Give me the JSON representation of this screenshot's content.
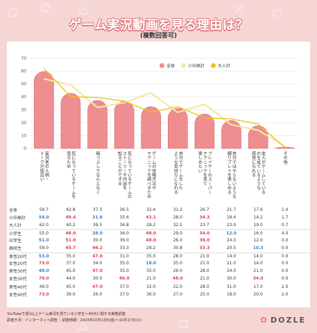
{
  "header": {
    "title": "ゲーム実況動画を見る理由は？",
    "subtitle": "(複数回答可)"
  },
  "colors": {
    "bar": "#ee8e90",
    "bar_edge": "#d9686b",
    "line_minor": "#f5e7a3",
    "line_adult": "#f0c419",
    "high": "#e03c4a",
    "low": "#3d7ec4"
  },
  "chart_data": {
    "type": "bar",
    "ylim": [
      0,
      70
    ],
    "yticks": [
      0,
      10,
      20,
      30,
      40,
      50,
      60,
      70
    ],
    "categories": [
      "実況者の人柄・\nトークが面白い",
      "気になっているゲームを\n見るため",
      "暇つぶしでなんとなく",
      "気になっているゲームの\nストーリーや内容を\n知ることができる",
      "ゲームの攻略方法や\nテクニックを調べるため",
      "自分でゲームをした\nような気持ちになれる",
      "プレイヤーのスーパー\nテクニックを見て\n楽しみたい",
      "自分ではやらないような\n縛りプレイを楽しめる",
      "友人がゲームしている\nのを見ているような\n感覚になれる",
      "その他"
    ],
    "legend": [
      "全体",
      "小中高計",
      "大人計"
    ],
    "series": [
      {
        "name": "全体",
        "type": "bar",
        "values": [
          59.7,
          42.8,
          37.3,
          36.5,
          32.4,
          31.2,
          26.7,
          21.7,
          17.6,
          1.0
        ]
      },
      {
        "name": "小中高計",
        "type": "line",
        "values": [
          54.0,
          49.4,
          31.8,
          35.6,
          43.1,
          28.0,
          34.3,
          18.4,
          14.2,
          1.7
        ]
      },
      {
        "name": "大人計",
        "type": "line",
        "values": [
          62.0,
          40.2,
          39.5,
          36.8,
          28.2,
          32.5,
          23.7,
          23.0,
          19.0,
          0.7
        ]
      }
    ]
  },
  "table": {
    "rows": [
      {
        "label": "全体",
        "values": [
          "59.7",
          "42.8",
          "37.3",
          "36.5",
          "32.4",
          "31.2",
          "26.7",
          "21.7",
          "17.6",
          "1.0"
        ],
        "flags": [
          "",
          "",
          "",
          "",
          "",
          "",
          "",
          "",
          "",
          ""
        ]
      },
      {
        "label": "小中高計",
        "values": [
          "54.0",
          "49.4",
          "31.8",
          "35.6",
          "43.1",
          "28.0",
          "34.3",
          "18.4",
          "14.2",
          "1.7"
        ],
        "flags": [
          "low",
          "high",
          "low",
          "",
          "high",
          "",
          "high",
          "",
          "",
          ""
        ]
      },
      {
        "label": "大人計",
        "values": [
          "62.0",
          "40.2",
          "39.5",
          "36.8",
          "28.2",
          "32.5",
          "23.7",
          "23.0",
          "19.0",
          "0.7"
        ],
        "flags": [
          "",
          "",
          "",
          "",
          "",
          "",
          "",
          "",
          "",
          ""
        ]
      },
      {
        "label": "小学生",
        "values": [
          "55.0",
          "48.0",
          "28.0",
          "36.0",
          "48.0",
          "29.0",
          "34.0",
          "12.0",
          "16.0",
          "4.0"
        ],
        "flags": [
          "",
          "high",
          "low",
          "",
          "high",
          "",
          "high",
          "low",
          "",
          ""
        ]
      },
      {
        "label": "中学生",
        "values": [
          "51.0",
          "51.0",
          "30.0",
          "36.0",
          "48.0",
          "26.0",
          "36.0",
          "24.0",
          "12.0",
          "0.0"
        ],
        "flags": [
          "low",
          "high",
          "",
          "",
          "high",
          "",
          "high",
          "",
          "",
          ""
        ]
      },
      {
        "label": "高校生",
        "values": [
          "59.0",
          "45.7",
          "46.2",
          "33.3",
          "28.2",
          "30.8",
          "33.3",
          "20.5",
          "10.3",
          "0.0"
        ],
        "flags": [
          "",
          "high",
          "high",
          "",
          "",
          "",
          "high",
          "",
          "low",
          ""
        ]
      },
      {
        "label": "男性20代",
        "values": [
          "53.0",
          "35.0",
          "47.0",
          "31.0",
          "35.0",
          "28.0",
          "21.0",
          "14.0",
          "14.0",
          "0.0"
        ],
        "flags": [
          "low",
          "",
          "high",
          "",
          "",
          "",
          "",
          "",
          "",
          ""
        ]
      },
      {
        "label": "女性20代",
        "values": [
          "73.0",
          "37.0",
          "34.0",
          "35.0",
          "18.0",
          "35.0",
          "21.0",
          "21.0",
          "14.0",
          "0.0"
        ],
        "flags": [
          "high",
          "",
          "",
          "",
          "low",
          "",
          "",
          "",
          "",
          ""
        ]
      },
      {
        "label": "男性30代",
        "values": [
          "48.0",
          "45.0",
          "47.0",
          "35.0",
          "35.0",
          "26.0",
          "28.0",
          "24.0",
          "21.0",
          "0.0"
        ],
        "flags": [
          "low",
          "",
          "high",
          "",
          "",
          "",
          "",
          "",
          "",
          ""
        ]
      },
      {
        "label": "女性30代",
        "values": [
          "79.0",
          "44.0",
          "30.0",
          "46.0",
          "21.0",
          "48.0",
          "21.0",
          "30.0",
          "34.0",
          "0.0"
        ],
        "flags": [
          "high",
          "",
          "",
          "high",
          "",
          "high",
          "",
          "",
          "high",
          ""
        ]
      },
      {
        "label": "男性40代",
        "values": [
          "49.0",
          "45.0",
          "47.0",
          "37.0",
          "32.0",
          "22.0",
          "28.0",
          "31.0",
          "17.0",
          "2.0"
        ],
        "flags": [
          "",
          "",
          "high",
          "",
          "",
          "",
          "",
          "",
          "",
          ""
        ]
      },
      {
        "label": "女性40代",
        "values": [
          "73.0",
          "39.0",
          "26.0",
          "37.0",
          "36.0",
          "27.0",
          "25.0",
          "18.0",
          "20.0",
          "2.0"
        ],
        "flags": [
          "high",
          "",
          "",
          "",
          "",
          "",
          "",
          "",
          "",
          ""
        ]
      }
    ]
  },
  "footer": {
    "line1": "YouTubeで週1以上ゲーム実況を見ている小学生～40代に関する実態調査",
    "line2": "調査方法：インターネット調査 ｜調査時期：2023年10月13日(金)～10月17日(火)"
  },
  "brand": {
    "name": "DOZLE"
  }
}
